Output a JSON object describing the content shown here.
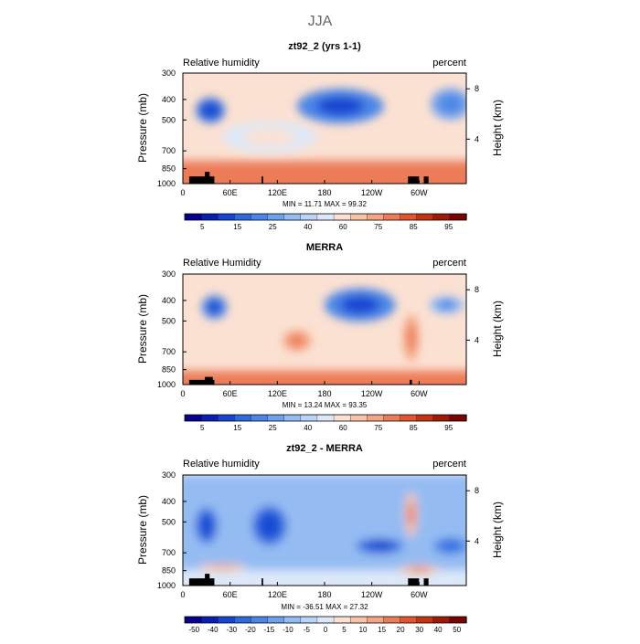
{
  "figure": {
    "title": "JJA"
  },
  "chart_data": [
    {
      "type": "heatmap",
      "title": "zt92_2 (yrs 1-1)",
      "left_label": "Relative humidity",
      "right_label": "percent",
      "ylabel": "Pressure  (mb)",
      "y2label": "Height  (km)",
      "xticks": [
        "0",
        "60E",
        "120E",
        "180",
        "120W",
        "60W"
      ],
      "xtick_lon": [
        0,
        60,
        120,
        180,
        240,
        300
      ],
      "xlim": [
        0,
        360
      ],
      "yticks": [
        "300",
        "400",
        "500",
        "700",
        "850",
        "1000"
      ],
      "ytick_p": [
        300,
        400,
        500,
        700,
        850,
        1000
      ],
      "ylim": [
        1000,
        300
      ],
      "y2ticks": [
        "8",
        "4"
      ],
      "y2tick_p": [
        356,
        616
      ],
      "stats": "MIN =   11.71   MAX =   99.32",
      "min": 11.71,
      "max": 99.32,
      "colorbar": {
        "labels": [
          "5",
          "15",
          "25",
          "40",
          "60",
          "75",
          "85",
          "95"
        ],
        "colors": [
          "#08008c",
          "#0a1eb4",
          "#1846d2",
          "#2e6ade",
          "#4b86e6",
          "#6ea0ec",
          "#94bcf2",
          "#bad4f6",
          "#dce8f8",
          "#fbe1d2",
          "#f8c4a8",
          "#f4a482",
          "#ec7c58",
          "#e0562e",
          "#c43414",
          "#a01a08",
          "#7a0500"
        ],
        "levels": [
          0,
          5,
          10,
          15,
          20,
          25,
          30,
          40,
          50,
          60,
          70,
          75,
          80,
          85,
          90,
          95,
          100
        ]
      },
      "features": [
        {
          "type": "band",
          "p_top": 780,
          "p_bot": 1000,
          "lon_from": 0,
          "lon_to": 360,
          "level": 82
        },
        {
          "type": "blob",
          "lon": 35,
          "p": 450,
          "lon_w": 18,
          "p_h": 120,
          "level": 18
        },
        {
          "type": "blob",
          "lon": 200,
          "p": 430,
          "lon_w": 55,
          "p_h": 160,
          "level": 22
        },
        {
          "type": "blob",
          "lon": 340,
          "p": 420,
          "lon_w": 25,
          "p_h": 140,
          "level": 28
        },
        {
          "type": "blob",
          "lon": 110,
          "p": 600,
          "lon_w": 60,
          "p_h": 200,
          "level": 55
        }
      ],
      "topography": [
        {
          "lon_from": 8,
          "lon_to": 40,
          "p_top": 925
        },
        {
          "lon_from": 28,
          "lon_to": 34,
          "p_top": 880
        },
        {
          "lon_from": 100,
          "lon_to": 102,
          "p_top": 925
        },
        {
          "lon_from": 286,
          "lon_to": 300,
          "p_top": 925
        },
        {
          "lon_from": 306,
          "lon_to": 312,
          "p_top": 925
        }
      ]
    },
    {
      "type": "heatmap",
      "title": "MERRA",
      "left_label": "Relative Humidity",
      "right_label": "percent",
      "ylabel": "Pressure  (mb)",
      "y2label": "Height  (km)",
      "xticks": [
        "0",
        "60E",
        "120E",
        "180",
        "120W",
        "60W"
      ],
      "xtick_lon": [
        0,
        60,
        120,
        180,
        240,
        300
      ],
      "xlim": [
        0,
        360
      ],
      "yticks": [
        "300",
        "400",
        "500",
        "700",
        "850",
        "1000"
      ],
      "ytick_p": [
        300,
        400,
        500,
        700,
        850,
        1000
      ],
      "ylim": [
        1000,
        300
      ],
      "y2ticks": [
        "8",
        "4"
      ],
      "y2tick_p": [
        356,
        616
      ],
      "stats": "MIN =   13.24   MAX =   93.35",
      "min": 13.24,
      "max": 93.35,
      "colorbar": {
        "labels": [
          "5",
          "15",
          "25",
          "40",
          "60",
          "75",
          "85",
          "95"
        ],
        "colors": [
          "#08008c",
          "#0a1eb4",
          "#1846d2",
          "#2e6ade",
          "#4b86e6",
          "#6ea0ec",
          "#94bcf2",
          "#bad4f6",
          "#dce8f8",
          "#fbe1d2",
          "#f8c4a8",
          "#f4a482",
          "#ec7c58",
          "#e0562e",
          "#c43414",
          "#a01a08",
          "#7a0500"
        ],
        "levels": [
          0,
          5,
          10,
          15,
          20,
          25,
          30,
          40,
          50,
          60,
          70,
          75,
          80,
          85,
          90,
          95,
          100
        ]
      },
      "features": [
        {
          "type": "band",
          "p_top": 860,
          "p_bot": 1000,
          "lon_from": 0,
          "lon_to": 360,
          "level": 82
        },
        {
          "type": "blob",
          "lon": 40,
          "p": 430,
          "lon_w": 16,
          "p_h": 110,
          "level": 22
        },
        {
          "type": "blob",
          "lon": 225,
          "p": 420,
          "lon_w": 45,
          "p_h": 150,
          "level": 20
        },
        {
          "type": "blob",
          "lon": 335,
          "p": 420,
          "lon_w": 22,
          "p_h": 80,
          "level": 30
        },
        {
          "type": "blob",
          "lon": 145,
          "p": 620,
          "lon_w": 18,
          "p_h": 140,
          "level": 78
        },
        {
          "type": "blob",
          "lon": 290,
          "p": 600,
          "lon_w": 10,
          "p_h": 300,
          "level": 76
        }
      ],
      "topography": [
        {
          "lon_from": 8,
          "lon_to": 40,
          "p_top": 950
        },
        {
          "lon_from": 28,
          "lon_to": 38,
          "p_top": 920
        },
        {
          "lon_from": 288,
          "lon_to": 291,
          "p_top": 950
        }
      ]
    },
    {
      "type": "heatmap",
      "title": "zt92_2 - MERRA",
      "left_label": "Relative humidity",
      "right_label": "percent",
      "ylabel": "Pressure  (mb)",
      "y2label": "Height  (km)",
      "xticks": [
        "0",
        "60E",
        "120E",
        "180",
        "120W",
        "60W"
      ],
      "xtick_lon": [
        0,
        60,
        120,
        180,
        240,
        300
      ],
      "xlim": [
        0,
        360
      ],
      "yticks": [
        "300",
        "400",
        "500",
        "700",
        "850",
        "1000"
      ],
      "ytick_p": [
        300,
        400,
        500,
        700,
        850,
        1000
      ],
      "ylim": [
        1000,
        300
      ],
      "y2ticks": [
        "8",
        "4"
      ],
      "y2tick_p": [
        356,
        616
      ],
      "stats": "MIN =  -36.51   MAX =   27.32",
      "min": -36.51,
      "max": 27.32,
      "colorbar": {
        "labels": [
          "-50",
          "-40",
          "-30",
          "-20",
          "-15",
          "-10",
          "-5",
          "0",
          "5",
          "10",
          "15",
          "20",
          "30",
          "40",
          "50"
        ],
        "colors": [
          "#08008c",
          "#0a1eb4",
          "#1846d2",
          "#2e6ade",
          "#4b86e6",
          "#6ea0ec",
          "#94bcf2",
          "#bad4f6",
          "#dce8f8",
          "#fbe1d2",
          "#f8c4a8",
          "#f4a482",
          "#ec7c58",
          "#e0562e",
          "#c43414",
          "#a01a08",
          "#7a0500"
        ],
        "levels": [
          -60,
          -50,
          -40,
          -30,
          -20,
          -15,
          -10,
          -5,
          0,
          5,
          10,
          15,
          20,
          30,
          40,
          50,
          60
        ]
      },
      "features": [
        {
          "type": "band",
          "p_top": 300,
          "p_bot": 760,
          "lon_from": 0,
          "lon_to": 360,
          "level": -8
        },
        {
          "type": "blob",
          "lon": 30,
          "p": 520,
          "lon_w": 14,
          "p_h": 200,
          "level": -28
        },
        {
          "type": "blob",
          "lon": 110,
          "p": 520,
          "lon_w": 22,
          "p_h": 220,
          "level": -22
        },
        {
          "type": "blob",
          "lon": 250,
          "p": 650,
          "lon_w": 30,
          "p_h": 110,
          "level": -22
        },
        {
          "type": "blob",
          "lon": 340,
          "p": 650,
          "lon_w": 22,
          "p_h": 120,
          "level": -18
        },
        {
          "type": "blob",
          "lon": 290,
          "p": 460,
          "lon_w": 8,
          "p_h": 220,
          "level": 12
        },
        {
          "type": "blob",
          "lon": 300,
          "p": 840,
          "lon_w": 25,
          "p_h": 80,
          "level": 12
        },
        {
          "type": "blob",
          "lon": 50,
          "p": 820,
          "lon_w": 30,
          "p_h": 60,
          "level": 10
        }
      ],
      "topography": [
        {
          "lon_from": 8,
          "lon_to": 40,
          "p_top": 925
        },
        {
          "lon_from": 28,
          "lon_to": 34,
          "p_top": 880
        },
        {
          "lon_from": 100,
          "lon_to": 102,
          "p_top": 925
        },
        {
          "lon_from": 286,
          "lon_to": 300,
          "p_top": 925
        },
        {
          "lon_from": 306,
          "lon_to": 312,
          "p_top": 925
        }
      ]
    }
  ]
}
